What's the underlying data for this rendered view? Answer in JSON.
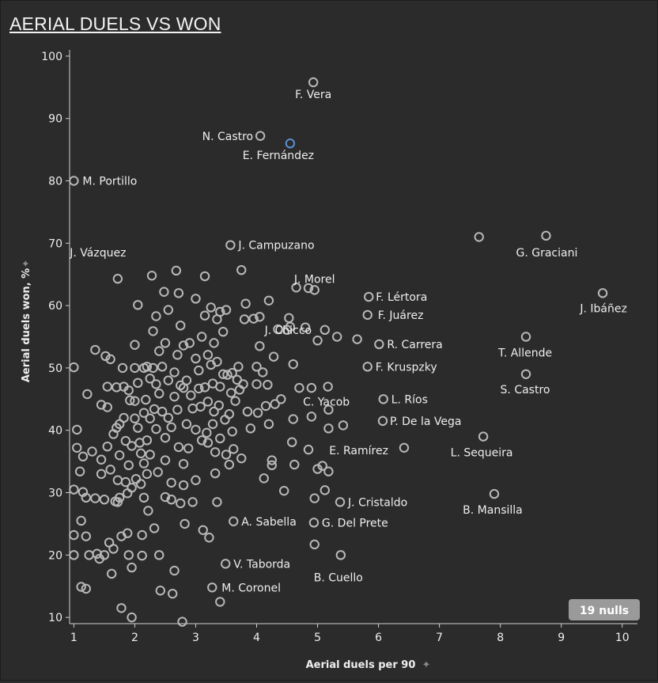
{
  "title": "AERIAL DUELS VS WON",
  "chart_data": {
    "type": "scatter",
    "title": "AERIAL DUELS VS WON",
    "xlabel": "Aerial duels per 90",
    "ylabel": "Aerial duels won, %",
    "xlim": [
      0.93,
      10.25
    ],
    "ylim": [
      9,
      101
    ],
    "xticks": [
      1,
      2,
      3,
      4,
      5,
      6,
      7,
      8,
      9,
      10
    ],
    "yticks": [
      10,
      20,
      30,
      40,
      50,
      60,
      70,
      80,
      90,
      100
    ],
    "grid": false,
    "nulls_badge": "19 nulls",
    "colors": {
      "background": "#2b2b2b",
      "point": "#b8b8b8",
      "highlight": "#5b8fd0",
      "text": "#eeeeee",
      "badge_bg": "#9a9a9a"
    },
    "labeled_points": [
      {
        "name": "F. Vera",
        "x": 4.93,
        "y": 95.8
      },
      {
        "name": "N. Castro",
        "x": 4.06,
        "y": 87.2
      },
      {
        "name": "E. Fernández",
        "x": 4.55,
        "y": 86.0,
        "highlight": true
      },
      {
        "name": "M. Portillo",
        "x": 1.0,
        "y": 80.0
      },
      {
        "name": "J. Campuzano",
        "x": 3.57,
        "y": 69.7
      },
      {
        "name": "G. Graciani",
        "x": 8.75,
        "y": 71.2
      },
      {
        "name": "J. Vázquez",
        "x": 1.72,
        "y": 64.3
      },
      {
        "name": "J. Morel",
        "x": 4.95,
        "y": 62.5
      },
      {
        "name": "J. Ibáñez",
        "x": 9.68,
        "y": 62.0
      },
      {
        "name": "F. Lértora",
        "x": 5.84,
        "y": 61.4
      },
      {
        "name": "J. Chicco",
        "x": 4.53,
        "y": 58.0
      },
      {
        "name": "F. Juárez",
        "x": 5.82,
        "y": 58.5
      },
      {
        "name": "R. Carrera",
        "x": 6.01,
        "y": 53.8
      },
      {
        "name": "T. Allende",
        "x": 8.42,
        "y": 55.0
      },
      {
        "name": "C. Yacob",
        "x": 5.17,
        "y": 47.0
      },
      {
        "name": "F. Kruspzky",
        "x": 5.82,
        "y": 50.2
      },
      {
        "name": "S. Castro",
        "x": 8.42,
        "y": 49.0
      },
      {
        "name": "L. Ríos",
        "x": 6.08,
        "y": 45.0
      },
      {
        "name": "P. De la Vega",
        "x": 6.07,
        "y": 41.5
      },
      {
        "name": "L. Sequeira",
        "x": 7.72,
        "y": 39.0
      },
      {
        "name": "E. Ramírez",
        "x": 6.42,
        "y": 37.2
      },
      {
        "name": "J. Cristaldo",
        "x": 5.37,
        "y": 28.5
      },
      {
        "name": "B. Mansilla",
        "x": 7.9,
        "y": 29.8
      },
      {
        "name": "A. Sabella",
        "x": 3.62,
        "y": 25.4
      },
      {
        "name": "G. Del Prete",
        "x": 4.94,
        "y": 25.2
      },
      {
        "name": "V. Taborda",
        "x": 3.49,
        "y": 18.6
      },
      {
        "name": "B. Cuello",
        "x": 5.38,
        "y": 20.0
      },
      {
        "name": "M. Coronel",
        "x": 3.27,
        "y": 14.8
      }
    ],
    "points": [
      [
        1.0,
        50.1
      ],
      [
        1.0,
        30.5
      ],
      [
        1.0,
        23.2
      ],
      [
        1.0,
        20.0
      ],
      [
        1.05,
        40.1
      ],
      [
        1.05,
        37.2
      ],
      [
        1.1,
        33.4
      ],
      [
        1.12,
        25.5
      ],
      [
        1.12,
        14.9
      ],
      [
        1.15,
        30.1
      ],
      [
        1.15,
        35.8
      ],
      [
        1.2,
        29.2
      ],
      [
        1.2,
        23.0
      ],
      [
        1.2,
        14.6
      ],
      [
        1.22,
        45.8
      ],
      [
        1.25,
        20.0
      ],
      [
        1.3,
        36.6
      ],
      [
        1.35,
        52.9
      ],
      [
        1.35,
        29.1
      ],
      [
        1.38,
        20.2
      ],
      [
        1.42,
        19.4
      ],
      [
        1.45,
        44.1
      ],
      [
        1.45,
        35.3
      ],
      [
        1.45,
        33.0
      ],
      [
        1.5,
        28.9
      ],
      [
        1.5,
        20.0
      ],
      [
        1.52,
        51.9
      ],
      [
        1.55,
        47.0
      ],
      [
        1.55,
        43.7
      ],
      [
        1.55,
        37.4
      ],
      [
        1.58,
        22.0
      ],
      [
        1.6,
        51.4
      ],
      [
        1.6,
        33.7
      ],
      [
        1.62,
        17.0
      ],
      [
        1.65,
        39.4
      ],
      [
        1.65,
        21.0
      ],
      [
        1.68,
        28.6
      ],
      [
        1.7,
        46.9
      ],
      [
        1.7,
        40.4
      ],
      [
        1.72,
        32.0
      ],
      [
        1.72,
        28.5
      ],
      [
        1.75,
        41.0
      ],
      [
        1.75,
        36.0
      ],
      [
        1.75,
        29.2
      ],
      [
        1.78,
        23.0
      ],
      [
        1.78,
        11.5
      ],
      [
        1.8,
        50.0
      ],
      [
        1.82,
        47.0
      ],
      [
        1.82,
        42.0
      ],
      [
        1.85,
        38.3
      ],
      [
        1.85,
        31.7
      ],
      [
        1.88,
        29.9
      ],
      [
        1.88,
        23.5
      ],
      [
        1.9,
        46.4
      ],
      [
        1.9,
        34.4
      ],
      [
        1.9,
        20.0
      ],
      [
        1.92,
        44.8
      ],
      [
        1.95,
        37.5
      ],
      [
        1.95,
        30.8
      ],
      [
        1.95,
        18.0
      ],
      [
        1.95,
        10.0
      ],
      [
        2.0,
        53.7
      ],
      [
        2.0,
        50.0
      ],
      [
        2.0,
        44.7
      ],
      [
        2.0,
        41.9
      ],
      [
        2.02,
        32.2
      ],
      [
        2.05,
        60.1
      ],
      [
        2.05,
        47.6
      ],
      [
        2.05,
        40.4
      ],
      [
        2.08,
        38.0
      ],
      [
        2.1,
        36.3
      ],
      [
        2.1,
        31.4
      ],
      [
        2.12,
        23.2
      ],
      [
        2.12,
        19.9
      ],
      [
        2.15,
        50.0
      ],
      [
        2.15,
        42.8
      ],
      [
        2.15,
        34.7
      ],
      [
        2.15,
        29.2
      ],
      [
        2.18,
        44.9
      ],
      [
        2.2,
        50.2
      ],
      [
        2.2,
        38.4
      ],
      [
        2.2,
        33.0
      ],
      [
        2.22,
        27.1
      ],
      [
        2.25,
        48.3
      ],
      [
        2.25,
        41.9
      ],
      [
        2.25,
        36.1
      ],
      [
        2.28,
        64.8
      ],
      [
        2.3,
        55.9
      ],
      [
        2.3,
        50.0
      ],
      [
        2.32,
        43.4
      ],
      [
        2.32,
        24.3
      ],
      [
        2.35,
        58.3
      ],
      [
        2.35,
        47.4
      ],
      [
        2.35,
        40.2
      ],
      [
        2.38,
        33.3
      ],
      [
        2.4,
        52.7
      ],
      [
        2.4,
        45.9
      ],
      [
        2.4,
        20.0
      ],
      [
        2.42,
        14.3
      ],
      [
        2.45,
        50.2
      ],
      [
        2.45,
        43.0
      ],
      [
        2.48,
        62.2
      ],
      [
        2.5,
        54.0
      ],
      [
        2.5,
        38.8
      ],
      [
        2.5,
        35.2
      ],
      [
        2.5,
        29.3
      ],
      [
        2.55,
        59.3
      ],
      [
        2.55,
        48.0
      ],
      [
        2.55,
        42.0
      ],
      [
        2.6,
        40.5
      ],
      [
        2.6,
        31.6
      ],
      [
        2.6,
        28.9
      ],
      [
        2.62,
        13.8
      ],
      [
        2.65,
        49.3
      ],
      [
        2.65,
        45.4
      ],
      [
        2.65,
        17.5
      ],
      [
        2.68,
        65.6
      ],
      [
        2.7,
        52.1
      ],
      [
        2.7,
        43.3
      ],
      [
        2.72,
        62.0
      ],
      [
        2.72,
        37.3
      ],
      [
        2.75,
        56.8
      ],
      [
        2.75,
        47.2
      ],
      [
        2.75,
        28.3
      ],
      [
        2.78,
        9.3
      ],
      [
        2.8,
        53.6
      ],
      [
        2.8,
        46.8
      ],
      [
        2.8,
        34.6
      ],
      [
        2.8,
        31.2
      ],
      [
        2.82,
        25.0
      ],
      [
        2.85,
        48.0
      ],
      [
        2.85,
        41.0
      ],
      [
        2.88,
        37.1
      ],
      [
        2.9,
        54.0
      ],
      [
        2.92,
        45.6
      ],
      [
        2.95,
        43.5
      ],
      [
        2.95,
        28.5
      ],
      [
        3.0,
        61.1
      ],
      [
        3.0,
        51.5
      ],
      [
        3.0,
        40.1
      ],
      [
        3.0,
        32.0
      ],
      [
        3.05,
        49.6
      ],
      [
        3.05,
        46.7
      ],
      [
        3.08,
        43.8
      ],
      [
        3.1,
        55.0
      ],
      [
        3.1,
        38.4
      ],
      [
        3.12,
        24.0
      ],
      [
        3.15,
        64.7
      ],
      [
        3.15,
        58.4
      ],
      [
        3.15,
        46.9
      ],
      [
        3.18,
        39.6
      ],
      [
        3.2,
        52.1
      ],
      [
        3.2,
        44.6
      ],
      [
        3.2,
        38.0
      ],
      [
        3.22,
        22.8
      ],
      [
        3.25,
        59.7
      ],
      [
        3.25,
        50.5
      ],
      [
        3.28,
        47.5
      ],
      [
        3.28,
        41.0
      ],
      [
        3.3,
        54.0
      ],
      [
        3.3,
        43.0
      ],
      [
        3.32,
        36.5
      ],
      [
        3.32,
        33.1
      ],
      [
        3.35,
        57.8
      ],
      [
        3.35,
        51.0
      ],
      [
        3.35,
        28.5
      ],
      [
        3.38,
        44.0
      ],
      [
        3.4,
        59.0
      ],
      [
        3.4,
        47.0
      ],
      [
        3.4,
        38.7
      ],
      [
        3.4,
        12.5
      ],
      [
        3.45,
        55.8
      ],
      [
        3.45,
        49.0
      ],
      [
        3.48,
        41.7
      ],
      [
        3.5,
        59.3
      ],
      [
        3.5,
        36.1
      ],
      [
        3.52,
        48.9
      ],
      [
        3.55,
        42.6
      ],
      [
        3.55,
        34.5
      ],
      [
        3.58,
        46.0
      ],
      [
        3.6,
        49.2
      ],
      [
        3.6,
        39.8
      ],
      [
        3.62,
        37.0
      ],
      [
        3.65,
        44.7
      ],
      [
        3.68,
        48.1
      ],
      [
        3.7,
        50.2
      ],
      [
        3.72,
        46.5
      ],
      [
        3.75,
        65.7
      ],
      [
        3.75,
        35.5
      ],
      [
        3.78,
        47.4
      ],
      [
        3.8,
        57.8
      ],
      [
        3.82,
        60.3
      ],
      [
        3.85,
        43.0
      ],
      [
        3.9,
        40.3
      ],
      [
        3.95,
        57.9
      ],
      [
        4.0,
        50.2
      ],
      [
        4.0,
        47.4
      ],
      [
        4.02,
        42.8
      ],
      [
        4.05,
        58.2
      ],
      [
        4.05,
        53.5
      ],
      [
        4.1,
        49.3
      ],
      [
        4.12,
        32.3
      ],
      [
        4.15,
        43.9
      ],
      [
        4.18,
        47.3
      ],
      [
        4.2,
        60.8
      ],
      [
        4.2,
        41.0
      ],
      [
        4.25,
        35.2
      ],
      [
        4.25,
        34.4
      ],
      [
        4.28,
        51.8
      ],
      [
        4.3,
        44.2
      ],
      [
        4.35,
        56.2
      ],
      [
        4.4,
        45.0
      ],
      [
        4.45,
        30.3
      ],
      [
        4.5,
        56.1
      ],
      [
        4.55,
        56.6
      ],
      [
        4.58,
        38.1
      ],
      [
        4.6,
        50.6
      ],
      [
        4.6,
        41.8
      ],
      [
        4.62,
        34.5
      ],
      [
        4.65,
        62.9
      ],
      [
        4.7,
        46.8
      ],
      [
        4.8,
        56.5
      ],
      [
        4.85,
        62.8
      ],
      [
        4.85,
        36.9
      ],
      [
        4.9,
        46.8
      ],
      [
        4.9,
        42.2
      ],
      [
        4.95,
        29.1
      ],
      [
        4.95,
        21.7
      ],
      [
        5.0,
        54.4
      ],
      [
        5.0,
        33.8
      ],
      [
        5.08,
        34.3
      ],
      [
        5.12,
        56.1
      ],
      [
        5.12,
        30.4
      ],
      [
        5.18,
        43.3
      ],
      [
        5.18,
        40.3
      ],
      [
        5.18,
        33.4
      ],
      [
        5.32,
        55.0
      ],
      [
        5.42,
        40.8
      ],
      [
        5.65,
        54.6
      ],
      [
        7.65,
        71.0
      ]
    ]
  }
}
